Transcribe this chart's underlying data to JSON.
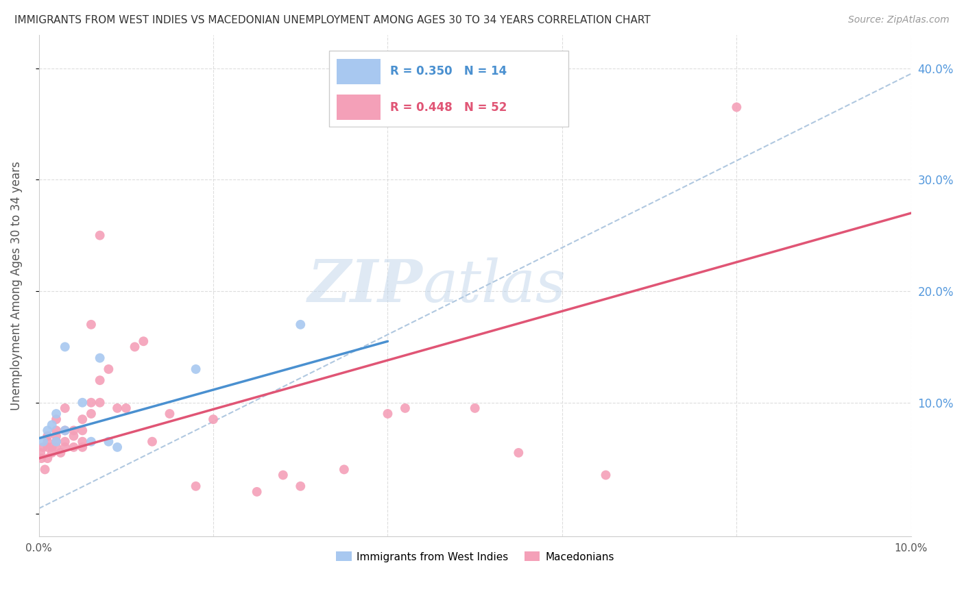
{
  "title": "IMMIGRANTS FROM WEST INDIES VS MACEDONIAN UNEMPLOYMENT AMONG AGES 30 TO 34 YEARS CORRELATION CHART",
  "source": "Source: ZipAtlas.com",
  "ylabel": "Unemployment Among Ages 30 to 34 years",
  "xlim": [
    0.0,
    0.1
  ],
  "ylim": [
    -0.02,
    0.43
  ],
  "legend_blue_r": "R = 0.350",
  "legend_blue_n": "N = 14",
  "legend_pink_r": "R = 0.448",
  "legend_pink_n": "N = 52",
  "watermark_zip": "ZIP",
  "watermark_atlas": "atlas",
  "blue_color": "#A8C8F0",
  "pink_color": "#F4A0B8",
  "blue_line_color": "#4A90D0",
  "pink_line_color": "#E05575",
  "dashed_line_color": "#B0C8E0",
  "grid_color": "#DDDDDD",
  "title_color": "#333333",
  "axis_label_color": "#555555",
  "tick_label_color_right": "#5599DD",
  "legend_label_blue": "Immigrants from West Indies",
  "legend_label_pink": "Macedonians",
  "blue_x": [
    0.0005,
    0.001,
    0.0015,
    0.002,
    0.002,
    0.003,
    0.003,
    0.005,
    0.006,
    0.007,
    0.008,
    0.009,
    0.018,
    0.03
  ],
  "blue_y": [
    0.065,
    0.075,
    0.08,
    0.065,
    0.09,
    0.15,
    0.075,
    0.1,
    0.065,
    0.14,
    0.065,
    0.06,
    0.13,
    0.17
  ],
  "pink_x": [
    0.0002,
    0.0003,
    0.0005,
    0.0007,
    0.001,
    0.001,
    0.001,
    0.001,
    0.0015,
    0.0015,
    0.002,
    0.002,
    0.002,
    0.002,
    0.002,
    0.0025,
    0.003,
    0.003,
    0.003,
    0.003,
    0.004,
    0.004,
    0.004,
    0.005,
    0.005,
    0.005,
    0.005,
    0.006,
    0.006,
    0.006,
    0.007,
    0.007,
    0.007,
    0.008,
    0.009,
    0.01,
    0.011,
    0.012,
    0.013,
    0.015,
    0.018,
    0.02,
    0.025,
    0.028,
    0.03,
    0.035,
    0.04,
    0.042,
    0.05,
    0.055,
    0.065,
    0.08
  ],
  "pink_y": [
    0.055,
    0.05,
    0.06,
    0.04,
    0.05,
    0.06,
    0.065,
    0.07,
    0.055,
    0.06,
    0.06,
    0.065,
    0.07,
    0.075,
    0.085,
    0.055,
    0.06,
    0.065,
    0.075,
    0.095,
    0.06,
    0.07,
    0.075,
    0.06,
    0.065,
    0.075,
    0.085,
    0.09,
    0.1,
    0.17,
    0.1,
    0.12,
    0.25,
    0.13,
    0.095,
    0.095,
    0.15,
    0.155,
    0.065,
    0.09,
    0.025,
    0.085,
    0.02,
    0.035,
    0.025,
    0.04,
    0.09,
    0.095,
    0.095,
    0.055,
    0.035,
    0.365
  ],
  "blue_line_x": [
    0.0,
    0.04
  ],
  "blue_line_y": [
    0.068,
    0.155
  ],
  "pink_line_x": [
    0.0,
    0.1
  ],
  "pink_line_y": [
    0.05,
    0.27
  ],
  "dashed_line_x": [
    0.0,
    0.1
  ],
  "dashed_line_y": [
    0.005,
    0.395
  ]
}
